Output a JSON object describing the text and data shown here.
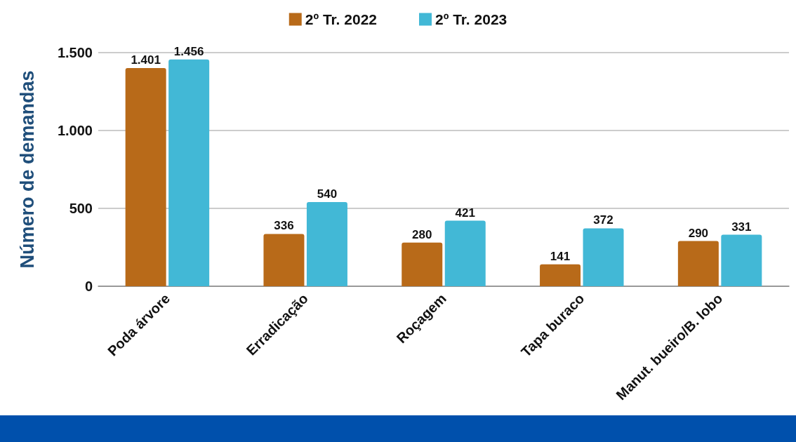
{
  "chart_data": {
    "type": "bar",
    "ylabel": "Número de demandas",
    "categories": [
      "Poda árvore",
      "Erradicação",
      "Roçagem",
      "Tapa buraco",
      "Manut. bueiro/B. lobo"
    ],
    "series": [
      {
        "name": "2º Tr. 2022",
        "color": "#b86a19",
        "values": [
          1401,
          336,
          280,
          141,
          290
        ],
        "value_labels": [
          "1.401",
          "336",
          "280",
          "141",
          "290"
        ]
      },
      {
        "name": "2º Tr. 2023",
        "color": "#42b8d6",
        "values": [
          1456,
          540,
          421,
          372,
          331
        ],
        "value_labels": [
          "1.456",
          "540",
          "421",
          "372",
          "331"
        ]
      }
    ],
    "ylim": [
      0,
      1500
    ],
    "yticks": [
      0,
      500,
      {
        "value": 1000,
        "label": "1.000"
      },
      {
        "value": 1500,
        "label": "1.500"
      }
    ],
    "grid": "y",
    "legend": "top"
  }
}
